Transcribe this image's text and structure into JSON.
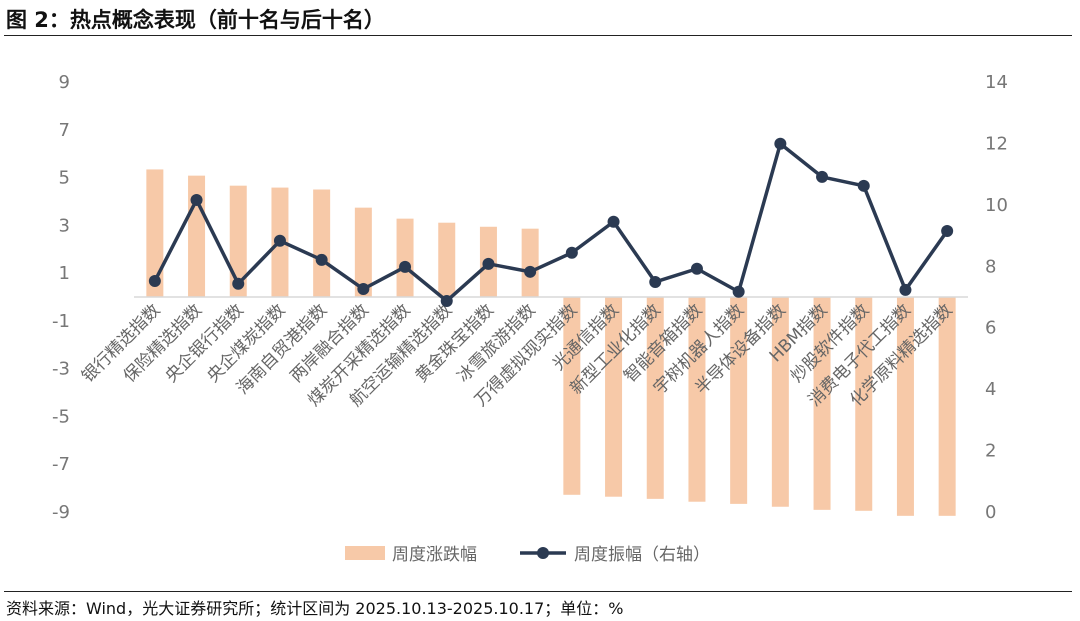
{
  "header": {
    "title": "图 2：热点概念表现（前十名与后十名）"
  },
  "footer": {
    "source": "资料来源：Wind，光大证券研究所；统计区间为 2025.10.13-2025.10.17；单位：%"
  },
  "chart_data": {
    "type": "bar+line",
    "categories": [
      "银行精选指数",
      "保险精选指数",
      "央企银行指数",
      "央企煤炭指数",
      "海南自贸港指数",
      "两岸融合指数",
      "煤炭开采精选指数",
      "航空运输精选指数",
      "黄金珠宝指数",
      "冰雪旅游指数",
      "万得虚拟现实指数",
      "光通信指数",
      "新型工业化指数",
      "智能音箱指数",
      "宇树机器人指数",
      "半导体设备指数",
      "HBM指数",
      "炒股软件指数",
      "消费电子代工指数",
      "化学原料精选指数"
    ],
    "series": [
      {
        "name": "周度涨跌幅",
        "type": "bar",
        "axis": "left",
        "color": "#F7C9A8",
        "values": [
          5.34,
          5.08,
          4.66,
          4.58,
          4.5,
          3.74,
          3.28,
          3.11,
          2.94,
          2.86,
          -8.28,
          -8.36,
          -8.45,
          -8.57,
          -8.66,
          -8.78,
          -8.91,
          -8.95,
          -9.16,
          -9.16
        ]
      },
      {
        "name": "周度振幅（右轴）",
        "type": "line",
        "axis": "right",
        "color": "#2B3A52",
        "values": [
          7.52,
          10.16,
          7.43,
          8.83,
          8.21,
          7.26,
          7.98,
          6.87,
          8.08,
          7.82,
          8.44,
          9.45,
          7.49,
          7.92,
          7.17,
          11.99,
          10.91,
          10.62,
          7.23,
          9.15
        ]
      }
    ],
    "left_axis": {
      "ylim": [
        -9,
        9
      ],
      "ticks": [
        9,
        7,
        5,
        3,
        1,
        -1,
        -3,
        -5,
        -7,
        -9
      ]
    },
    "right_axis": {
      "ylim": [
        0,
        14
      ],
      "ticks": [
        14,
        12,
        10,
        8,
        6,
        4,
        2,
        0
      ]
    },
    "legend": "bottom",
    "grid": false
  }
}
